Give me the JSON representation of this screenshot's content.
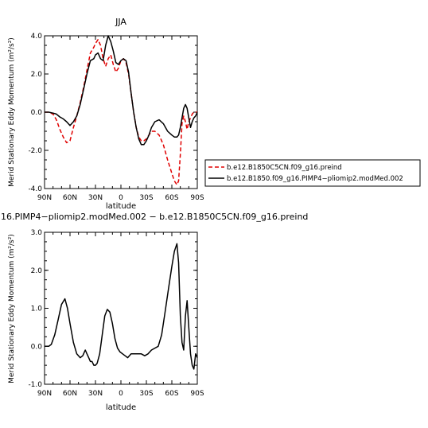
{
  "chart_data": [
    {
      "type": "line",
      "title": "JJA",
      "xlabel": "",
      "ylabel": "Merid Stationary Eddy Momentum (m²/s²)",
      "xlim": [
        90,
        -90
      ],
      "ylim": [
        -4.0,
        4.0
      ],
      "xticks": [
        90,
        60,
        30,
        0,
        -30,
        -60,
        -90
      ],
      "xtick_labels": [
        "90N",
        "60N",
        "30N",
        "0",
        "30S",
        "60S",
        "90S"
      ],
      "yticks": [
        -4.0,
        -2.0,
        0.0,
        2.0,
        4.0
      ],
      "ytick_labels": [
        "-4.0",
        "-2.0",
        "0.0",
        "2.0",
        "4.0"
      ],
      "grid": false,
      "legend_position": "right of plot",
      "series": [
        {
          "name": "b.e12.B1850C5CN.f09_g16.preind",
          "color": "#e00000",
          "dash": "dashed",
          "x": [
            90,
            85,
            80,
            76,
            72,
            68,
            64,
            60,
            56,
            52,
            48,
            44,
            40,
            36,
            32,
            30,
            27,
            24,
            21,
            18,
            15,
            12,
            9,
            6,
            3,
            0,
            -3,
            -6,
            -9,
            -12,
            -15,
            -18,
            -21,
            -24,
            -27,
            -30,
            -33,
            -36,
            -40,
            -45,
            -50,
            -55,
            -60,
            -63,
            -66,
            -68,
            -70,
            -72,
            -74,
            -76,
            -78,
            -80,
            -82,
            -84,
            -86,
            -88,
            -90
          ],
          "y": [
            0.0,
            0.0,
            -0.1,
            -0.4,
            -0.9,
            -1.3,
            -1.6,
            -1.5,
            -0.8,
            -0.2,
            0.5,
            1.3,
            2.2,
            3.1,
            3.4,
            3.6,
            3.8,
            3.5,
            2.8,
            2.4,
            2.8,
            3.0,
            2.5,
            2.1,
            2.3,
            2.7,
            2.8,
            2.6,
            2.0,
            1.0,
            0.0,
            -0.8,
            -1.3,
            -1.5,
            -1.5,
            -1.4,
            -1.2,
            -1.0,
            -1.0,
            -1.2,
            -1.7,
            -2.5,
            -3.2,
            -3.6,
            -3.8,
            -3.6,
            -2.2,
            -0.6,
            -0.2,
            -0.5,
            -0.9,
            -0.5,
            -0.3,
            -0.1,
            0.0,
            0.0,
            0.0
          ]
        },
        {
          "name": "b.e12.B1850.f09_g16.PIMP4−pliomip2.modMed.002",
          "color": "#000000",
          "dash": "solid",
          "x": [
            90,
            85,
            80,
            76,
            72,
            68,
            64,
            60,
            56,
            52,
            48,
            44,
            40,
            36,
            32,
            30,
            27,
            24,
            21,
            18,
            15,
            12,
            9,
            6,
            3,
            0,
            -3,
            -6,
            -9,
            -12,
            -15,
            -18,
            -21,
            -24,
            -27,
            -30,
            -33,
            -36,
            -40,
            -45,
            -50,
            -55,
            -60,
            -63,
            -66,
            -68,
            -70,
            -72,
            -74,
            -76,
            -78,
            -80,
            -82,
            -84,
            -86,
            -88,
            -90
          ],
          "y": [
            0.0,
            0.0,
            -0.05,
            -0.1,
            -0.25,
            -0.35,
            -0.5,
            -0.7,
            -0.5,
            -0.2,
            0.4,
            1.2,
            2.0,
            2.7,
            2.8,
            3.0,
            3.1,
            2.8,
            2.7,
            3.5,
            4.0,
            3.7,
            3.2,
            2.6,
            2.5,
            2.7,
            2.8,
            2.7,
            2.1,
            1.0,
            0.0,
            -0.8,
            -1.4,
            -1.7,
            -1.7,
            -1.5,
            -1.2,
            -0.8,
            -0.5,
            -0.4,
            -0.6,
            -1.0,
            -1.2,
            -1.3,
            -1.3,
            -1.2,
            -0.8,
            -0.3,
            0.2,
            0.4,
            0.2,
            -0.3,
            -0.8,
            -0.5,
            -0.3,
            -0.2,
            0.0
          ]
        }
      ]
    },
    {
      "type": "line",
      "title": "16.PIMP4−pliomip2.modMed.002 − b.e12.B1850C5CN.f09_g16.preind",
      "xlabel": "latitude",
      "ylabel": "Merid Stationary Eddy Momentum (m²/s²)",
      "xlim": [
        90,
        -90
      ],
      "ylim": [
        -1.0,
        3.0
      ],
      "xticks": [
        90,
        60,
        30,
        0,
        -30,
        -60,
        -90
      ],
      "xtick_labels": [
        "90N",
        "60N",
        "30N",
        "0",
        "30S",
        "60S",
        "90S"
      ],
      "yticks": [
        -1.0,
        0.0,
        1.0,
        2.0,
        3.0
      ],
      "ytick_labels": [
        "-1.0",
        "0.0",
        "1.0",
        "2.0",
        "3.0"
      ],
      "grid": false,
      "series": [
        {
          "name": "",
          "color": "#000000",
          "dash": "solid",
          "x": [
            90,
            85,
            82,
            78,
            74,
            70,
            66,
            63,
            60,
            56,
            52,
            48,
            45,
            42,
            40,
            38,
            36,
            34,
            32,
            30,
            28,
            25,
            22,
            19,
            16,
            13,
            10,
            7,
            4,
            1,
            -2,
            -5,
            -8,
            -12,
            -16,
            -20,
            -24,
            -28,
            -32,
            -36,
            -40,
            -44,
            -48,
            -52,
            -56,
            -60,
            -63,
            -66,
            -68,
            -70,
            -72,
            -74,
            -76,
            -78,
            -80,
            -82,
            -84,
            -86,
            -88,
            -90
          ],
          "y": [
            0.0,
            0.0,
            0.05,
            0.3,
            0.7,
            1.1,
            1.25,
            1.0,
            0.6,
            0.1,
            -0.2,
            -0.3,
            -0.25,
            -0.1,
            -0.2,
            -0.3,
            -0.4,
            -0.4,
            -0.5,
            -0.5,
            -0.45,
            -0.2,
            0.3,
            0.8,
            0.97,
            0.9,
            0.6,
            0.2,
            -0.05,
            -0.15,
            -0.2,
            -0.25,
            -0.3,
            -0.2,
            -0.2,
            -0.2,
            -0.2,
            -0.25,
            -0.2,
            -0.1,
            -0.05,
            0.0,
            0.3,
            0.9,
            1.5,
            2.1,
            2.5,
            2.7,
            2.2,
            0.8,
            0.1,
            -0.1,
            0.8,
            1.2,
            0.5,
            -0.2,
            -0.5,
            -0.6,
            -0.2,
            -0.3
          ]
        }
      ]
    }
  ]
}
